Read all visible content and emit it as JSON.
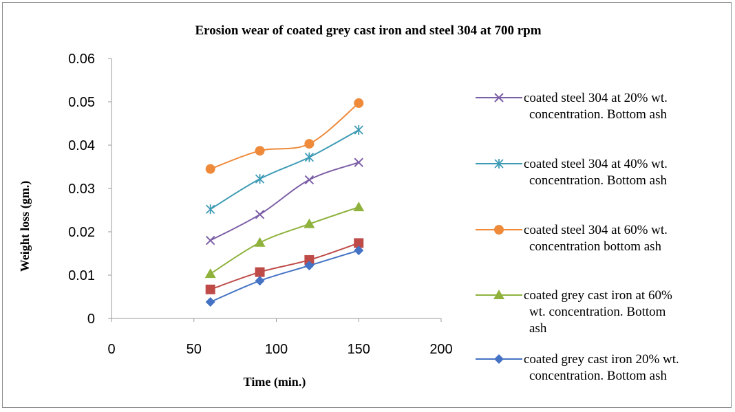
{
  "chart_data": {
    "type": "scatter",
    "title": "Erosion wear of coated grey cast iron and steel 304 at 700 rpm",
    "xlabel": "Time (min.)",
    "ylabel": "Weight loss (gm.)",
    "xlim": [
      0,
      200
    ],
    "ylim": [
      0,
      0.06
    ],
    "x_ticks": [
      "0",
      "50",
      "100",
      "150",
      "200"
    ],
    "y_ticks": [
      "0",
      "0.01",
      "0.02",
      "0.03",
      "0.04",
      "0.05",
      "0.06"
    ],
    "grid": false,
    "legend_position": "right",
    "smooth_lines": true,
    "series": [
      {
        "name": "coated steel 304 at 20% wt. concentration. Bottom ash",
        "legend_lines": [
          "coated steel 304 at 20% wt.",
          "concentration. Bottom ash"
        ],
        "marker": "x",
        "color": "#7b5ea6",
        "x": [
          60,
          90,
          120,
          150
        ],
        "y": [
          0.018,
          0.024,
          0.032,
          0.036
        ]
      },
      {
        "name": "coated steel 304 at 40% wt. concentration. Bottom ash",
        "legend_lines": [
          "coated steel 304 at 40% wt.",
          "concentration. Bottom ash"
        ],
        "marker": "star",
        "color": "#3e9bb5",
        "x": [
          60,
          90,
          120,
          150
        ],
        "y": [
          0.0252,
          0.0322,
          0.0372,
          0.0435
        ]
      },
      {
        "name": "coated steel 304 at 60% wt. concentration bottom ash",
        "legend_lines": [
          "coated steel 304 at 60% wt.",
          "concentration bottom ash"
        ],
        "marker": "circle",
        "color": "#ee8a3a",
        "x": [
          60,
          90,
          120,
          150
        ],
        "y": [
          0.0345,
          0.0387,
          0.0403,
          0.0497
        ]
      },
      {
        "name": "coated grey cast iron at 60% wt. concentration. Bottom ash",
        "legend_lines": [
          "coated grey cast iron at 60%",
          "wt. concentration. Bottom",
          "ash"
        ],
        "marker": "triangle",
        "color": "#8fb23c",
        "x": [
          60,
          90,
          120,
          150
        ],
        "y": [
          0.0103,
          0.0175,
          0.0218,
          0.0257
        ]
      },
      {
        "name": "",
        "legend_lines": [],
        "marker": "square",
        "color": "#be4b48",
        "x": [
          60,
          90,
          120,
          150
        ],
        "y": [
          0.0067,
          0.0107,
          0.0135,
          0.0174
        ]
      },
      {
        "name": "coated grey cast iron 20% wt. concentration. Bottom ash",
        "legend_lines": [
          "coated grey cast iron 20% wt.",
          "concentration. Bottom ash"
        ],
        "marker": "diamond",
        "color": "#4472c4",
        "x": [
          60,
          90,
          120,
          150
        ],
        "y": [
          0.0038,
          0.0087,
          0.0122,
          0.0157
        ]
      }
    ]
  }
}
